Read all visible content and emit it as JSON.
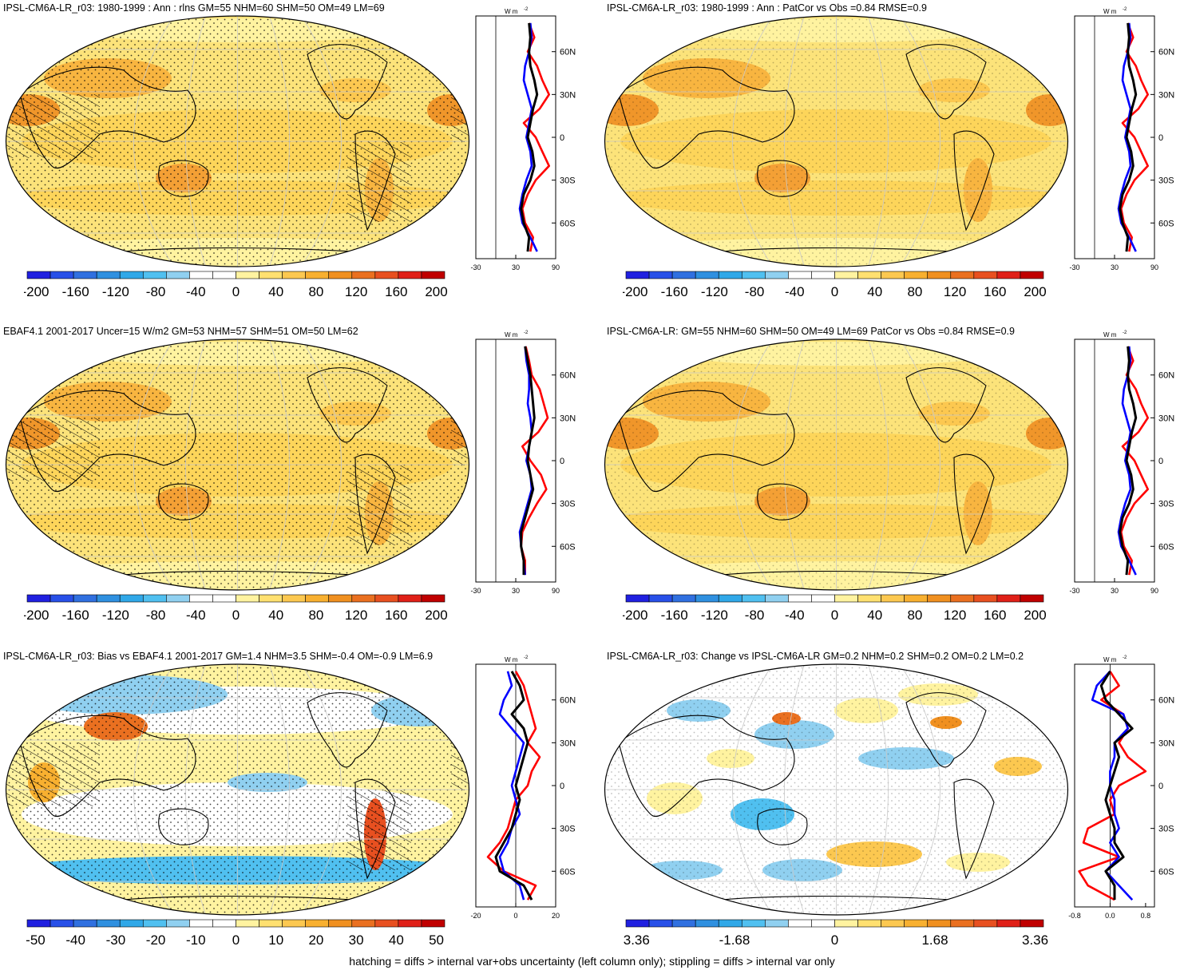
{
  "caption": "hatching = diffs > internal var+obs uncertainty (left column only); stippling = diffs > internal var only",
  "colors": {
    "scale": [
      "#2020e0",
      "#2850e8",
      "#3070e0",
      "#2f90e0",
      "#30a8e8",
      "#50c0f0",
      "#90d0f0",
      "#ffffff",
      "#ffffff",
      "#fff3a0",
      "#ffe070",
      "#fcc850",
      "#f8b030",
      "#f09020",
      "#ea7020",
      "#e85020",
      "#e02018",
      "#c00000"
    ],
    "zonal_model": "#000000",
    "zonal_obs": "#ff0000",
    "zonal_other": "#0000ff"
  },
  "chart_data": [
    {
      "type": "heatmap",
      "title": "IPSL-CM6A-LR_r03: 1980-1999 : Ann : rlns GM=55 NHM=60 SHM=50 OM=49 LM=69",
      "colorbar_ticks": [
        "-200",
        "-160",
        "-120",
        "-80",
        "-40",
        "0",
        "40",
        "80",
        "120",
        "160",
        "200"
      ],
      "profile": {
        "unit_label": "W m",
        "unit_exp": "-2",
        "x_ticks": [
          "-30",
          "30",
          "90"
        ],
        "y_ticks": [
          "60N",
          "30N",
          "0",
          "30S",
          "60S"
        ],
        "xlim": [
          -30,
          90
        ],
        "lat": [
          80,
          70,
          60,
          50,
          40,
          30,
          20,
          10,
          0,
          -10,
          -20,
          -30,
          -40,
          -50,
          -60,
          -70,
          -80
        ],
        "series": [
          {
            "role": "obs",
            "values": [
              50,
              58,
              48,
              62,
              70,
              80,
              66,
              42,
              60,
              70,
              80,
              60,
              48,
              40,
              44,
              56,
              52
            ]
          },
          {
            "role": "model",
            "values": [
              50,
              52,
              50,
              52,
              58,
              62,
              56,
              52,
              48,
              55,
              58,
              52,
              42,
              38,
              42,
              50,
              48
            ]
          },
          {
            "role": "other",
            "values": [
              52,
              54,
              50,
              44,
              42,
              48,
              54,
              50,
              46,
              52,
              54,
              46,
              40,
              36,
              40,
              52,
              62
            ]
          }
        ]
      }
    },
    {
      "type": "heatmap",
      "title": "IPSL-CM6A-LR_r03: 1980-1999 : Ann : PatCor vs Obs =0.84 RMSE=0.9",
      "colorbar_ticks": [
        "-200",
        "-160",
        "-120",
        "-80",
        "-40",
        "0",
        "40",
        "80",
        "120",
        "160",
        "200"
      ],
      "profile": {
        "unit_label": "W m",
        "unit_exp": "-2",
        "x_ticks": [
          "-30",
          "30",
          "90"
        ],
        "y_ticks": [
          "60N",
          "30N",
          "0",
          "30S",
          "60S"
        ],
        "xlim": [
          -30,
          90
        ],
        "lat": [
          80,
          70,
          60,
          50,
          40,
          30,
          20,
          10,
          0,
          -10,
          -20,
          -30,
          -40,
          -50,
          -60,
          -70,
          -80
        ],
        "series": [
          {
            "role": "obs",
            "values": [
              50,
              58,
              48,
              62,
              70,
              80,
              66,
              42,
              60,
              70,
              80,
              60,
              48,
              40,
              44,
              56,
              52
            ]
          },
          {
            "role": "model",
            "values": [
              50,
              52,
              50,
              52,
              58,
              62,
              56,
              52,
              48,
              55,
              58,
              52,
              42,
              38,
              42,
              50,
              48
            ]
          },
          {
            "role": "other",
            "values": [
              52,
              54,
              50,
              44,
              42,
              48,
              54,
              50,
              46,
              52,
              54,
              46,
              40,
              36,
              40,
              52,
              62
            ]
          }
        ]
      }
    },
    {
      "type": "heatmap",
      "title": "EBAF4.1 2001-2017 Uncer=15 W/m2 GM=53 NHM=57 SHM=51 OM=50 LM=62",
      "colorbar_ticks": [
        "-200",
        "-160",
        "-120",
        "-80",
        "-40",
        "0",
        "40",
        "80",
        "120",
        "160",
        "200"
      ],
      "profile": {
        "unit_label": "W m",
        "unit_exp": "-2",
        "x_ticks": [
          "-30",
          "30",
          "90"
        ],
        "y_ticks": [
          "60N",
          "30N",
          "0",
          "30S",
          "60S"
        ],
        "xlim": [
          -30,
          90
        ],
        "lat": [
          80,
          70,
          60,
          50,
          40,
          30,
          20,
          10,
          0,
          -10,
          -20,
          -30,
          -40,
          -50,
          -60,
          -70,
          -80
        ],
        "series": [
          {
            "role": "obs",
            "values": [
              45,
              50,
              54,
              66,
              72,
              78,
              64,
              40,
              52,
              68,
              76,
              62,
              50,
              40,
              38,
              44,
              44
            ]
          },
          {
            "role": "model",
            "values": [
              44,
              48,
              52,
              54,
              56,
              58,
              54,
              50,
              48,
              52,
              56,
              50,
              44,
              38,
              38,
              42,
              42
            ]
          },
          {
            "role": "other",
            "values": [
              44,
              46,
              50,
              50,
              48,
              52,
              54,
              50,
              46,
              52,
              54,
              48,
              42,
              36,
              38,
              42,
              44
            ]
          }
        ]
      }
    },
    {
      "type": "heatmap",
      "title": "IPSL-CM6A-LR: GM=55 NHM=60 SHM=50 OM=49 LM=69 PatCor vs Obs =0.84 RMSE=0.9",
      "colorbar_ticks": [
        "-200",
        "-160",
        "-120",
        "-80",
        "-40",
        "0",
        "40",
        "80",
        "120",
        "160",
        "200"
      ],
      "profile": {
        "unit_label": "W m",
        "unit_exp": "-2",
        "x_ticks": [
          "-30",
          "30",
          "90"
        ],
        "y_ticks": [
          "60N",
          "30N",
          "0",
          "30S",
          "60S"
        ],
        "xlim": [
          -30,
          90
        ],
        "lat": [
          80,
          70,
          60,
          50,
          40,
          30,
          20,
          10,
          0,
          -10,
          -20,
          -30,
          -40,
          -50,
          -60,
          -70,
          -80
        ],
        "series": [
          {
            "role": "obs",
            "values": [
              50,
              58,
              48,
              62,
              70,
              80,
              66,
              42,
              60,
              70,
              80,
              60,
              48,
              40,
              44,
              56,
              52
            ]
          },
          {
            "role": "model",
            "values": [
              50,
              52,
              50,
              52,
              58,
              62,
              56,
              52,
              48,
              55,
              58,
              52,
              42,
              38,
              42,
              50,
              48
            ]
          },
          {
            "role": "other",
            "values": [
              52,
              54,
              50,
              44,
              42,
              48,
              54,
              50,
              46,
              52,
              54,
              46,
              40,
              36,
              40,
              52,
              62
            ]
          }
        ]
      }
    },
    {
      "type": "heatmap",
      "title": "IPSL-CM6A-LR_r03: Bias vs EBAF4.1 2001-2017 GM=1.4 NHM=3.5 SHM=-0.4 OM=-0.9 LM=6.9",
      "colorbar_ticks": [
        "-50",
        "-40",
        "-30",
        "-20",
        "-10",
        "0",
        "10",
        "20",
        "30",
        "40",
        "50"
      ],
      "profile": {
        "unit_label": "W m",
        "unit_exp": "-2",
        "x_ticks": [
          "-20",
          "0",
          "20"
        ],
        "y_ticks": [
          "60N",
          "30N",
          "0",
          "30S",
          "60S"
        ],
        "xlim": [
          -20,
          20
        ],
        "lat": [
          80,
          70,
          60,
          50,
          40,
          30,
          20,
          10,
          0,
          -10,
          -20,
          -30,
          -40,
          -50,
          -60,
          -70,
          -80
        ],
        "series": [
          {
            "role": "obs",
            "values": [
              0,
              4,
              6,
              8,
              10,
              6,
              12,
              8,
              6,
              0,
              -2,
              -4,
              -8,
              -14,
              -6,
              10,
              6
            ]
          },
          {
            "role": "model",
            "values": [
              -2,
              2,
              4,
              -2,
              4,
              6,
              4,
              2,
              0,
              2,
              0,
              -2,
              -6,
              -10,
              -8,
              4,
              8
            ]
          },
          {
            "role": "other",
            "values": [
              -4,
              -2,
              -6,
              -8,
              -2,
              4,
              2,
              0,
              -2,
              0,
              2,
              -2,
              -4,
              -8,
              -6,
              2,
              4
            ]
          }
        ]
      }
    },
    {
      "type": "heatmap",
      "title": "IPSL-CM6A-LR_r03: Change vs IPSL-CM6A-LR GM=0.2 NHM=0.2 SHM=0.2 OM=0.2 LM=0.2",
      "colorbar_ticks": [
        "-3.36",
        "-1.68",
        "0",
        "1.68",
        "3.36"
      ],
      "profile": {
        "unit_label": "W m",
        "unit_exp": "-2",
        "x_ticks": [
          "-0.8",
          "0.0",
          "0.8"
        ],
        "y_ticks": [
          "60N",
          "30N",
          "0",
          "30S",
          "60S"
        ],
        "xlim": [
          -0.8,
          1.0
        ],
        "lat": [
          80,
          70,
          60,
          50,
          40,
          30,
          20,
          10,
          0,
          -10,
          -20,
          -30,
          -40,
          -50,
          -60,
          -70,
          -80
        ],
        "series": [
          {
            "role": "obs",
            "values": [
              0,
              0.2,
              -0.2,
              0.3,
              0.4,
              0.2,
              0.4,
              0.8,
              0.2,
              0,
              0.1,
              -0.5,
              -0.6,
              0.2,
              -0.7,
              -0.5,
              0.1
            ]
          },
          {
            "role": "model",
            "values": [
              0,
              -0.2,
              -0.1,
              0.2,
              0.5,
              0.1,
              0.2,
              0.1,
              0,
              -0.1,
              0,
              0.1,
              0.1,
              0.3,
              -0.1,
              0.1,
              0.1
            ]
          },
          {
            "role": "other",
            "values": [
              0,
              -0.3,
              -0.4,
              0.3,
              0.4,
              0.1,
              0.1,
              0,
              0,
              0.1,
              0.1,
              0.2,
              0,
              0.2,
              -0.1,
              0.2,
              0.5
            ]
          }
        ]
      }
    }
  ]
}
